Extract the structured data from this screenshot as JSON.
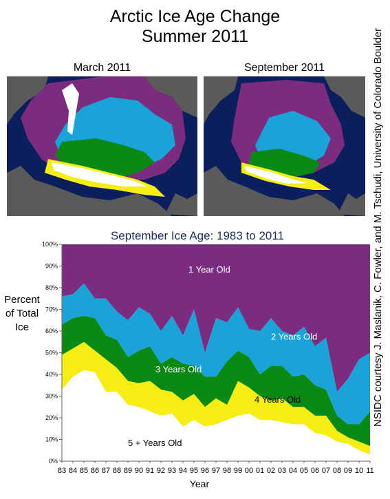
{
  "header": {
    "title_line1": "Arctic Ice Age Change",
    "title_line2": "Summer 2011"
  },
  "maps": [
    {
      "label": "March 2011"
    },
    {
      "label": "September 2011"
    }
  ],
  "credit": "NSIDC courtesy J. Maslanik, C. Fowler, and M. Tschudi, University of Colorado Boulder",
  "colors": {
    "one_year": "#7B2C7E",
    "two_years": "#1AA3D8",
    "three_years": "#0A8A14",
    "four_years": "#F6EE12",
    "five_plus": "#FFFFFF",
    "title_navy": "#1A2C5A",
    "ocean": "#0A1F5C",
    "land": "#5A5A5A"
  },
  "chart_data": {
    "type": "area",
    "title": "September Ice Age: 1983 to 2011",
    "xlabel": "Year",
    "ylabel_lines": [
      "Percent",
      "of Total",
      "Ice"
    ],
    "ylim": [
      0,
      100
    ],
    "y_ticks": [
      "0%",
      "10%",
      "20%",
      "30%",
      "40%",
      "50%",
      "60%",
      "70%",
      "80%",
      "90%",
      "100%"
    ],
    "x": [
      "83",
      "84",
      "85",
      "86",
      "87",
      "88",
      "89",
      "90",
      "91",
      "92",
      "93",
      "94",
      "95",
      "96",
      "97",
      "98",
      "99",
      "00",
      "01",
      "02",
      "03",
      "04",
      "05",
      "06",
      "07",
      "08",
      "09",
      "10",
      "11"
    ],
    "cumulative_boundaries_percent": {
      "five_plus_top": [
        33,
        39,
        42,
        41,
        32,
        32,
        26,
        25,
        23,
        21,
        22,
        16,
        19,
        16,
        17,
        19,
        21,
        22,
        19,
        19,
        18,
        17,
        17,
        13,
        12,
        9,
        8,
        5,
        3
      ],
      "four_years_top": [
        49,
        52,
        55,
        51,
        47,
        43,
        37,
        36,
        37,
        33,
        32,
        28,
        31,
        25,
        29,
        26,
        37,
        34,
        30,
        28,
        29,
        25,
        25,
        21,
        21,
        14,
        11,
        9,
        7
      ],
      "three_years_top": [
        63,
        66,
        67,
        66,
        58,
        56,
        48,
        51,
        53,
        45,
        48,
        45,
        44,
        39,
        39,
        46,
        51,
        48,
        40,
        44,
        44,
        39,
        40,
        35,
        33,
        21,
        17,
        17,
        23
      ],
      "two_years_top": [
        76,
        77,
        82,
        75,
        75,
        69,
        65,
        71,
        68,
        60,
        67,
        58,
        70,
        50,
        66,
        64,
        71,
        61,
        60,
        66,
        60,
        58,
        62,
        53,
        57,
        32,
        38,
        47,
        50
      ],
      "one_year_top": [
        100,
        100,
        100,
        100,
        100,
        100,
        100,
        100,
        100,
        100,
        100,
        100,
        100,
        100,
        100,
        100,
        100,
        100,
        100,
        100,
        100,
        100,
        100,
        100,
        100,
        100,
        100,
        100,
        100
      ]
    },
    "series": [
      {
        "name": "5 + Years Old",
        "color": "#FFFFFF"
      },
      {
        "name": "4 Years Old",
        "color": "#F6EE12"
      },
      {
        "name": "3 Years Old",
        "color": "#0A8A14"
      },
      {
        "name": "2 Years Old",
        "color": "#1AA3D8"
      },
      {
        "name": "1 Year Old",
        "color": "#7B2C7E"
      }
    ],
    "grid": false,
    "legend": "labels inside areas"
  }
}
